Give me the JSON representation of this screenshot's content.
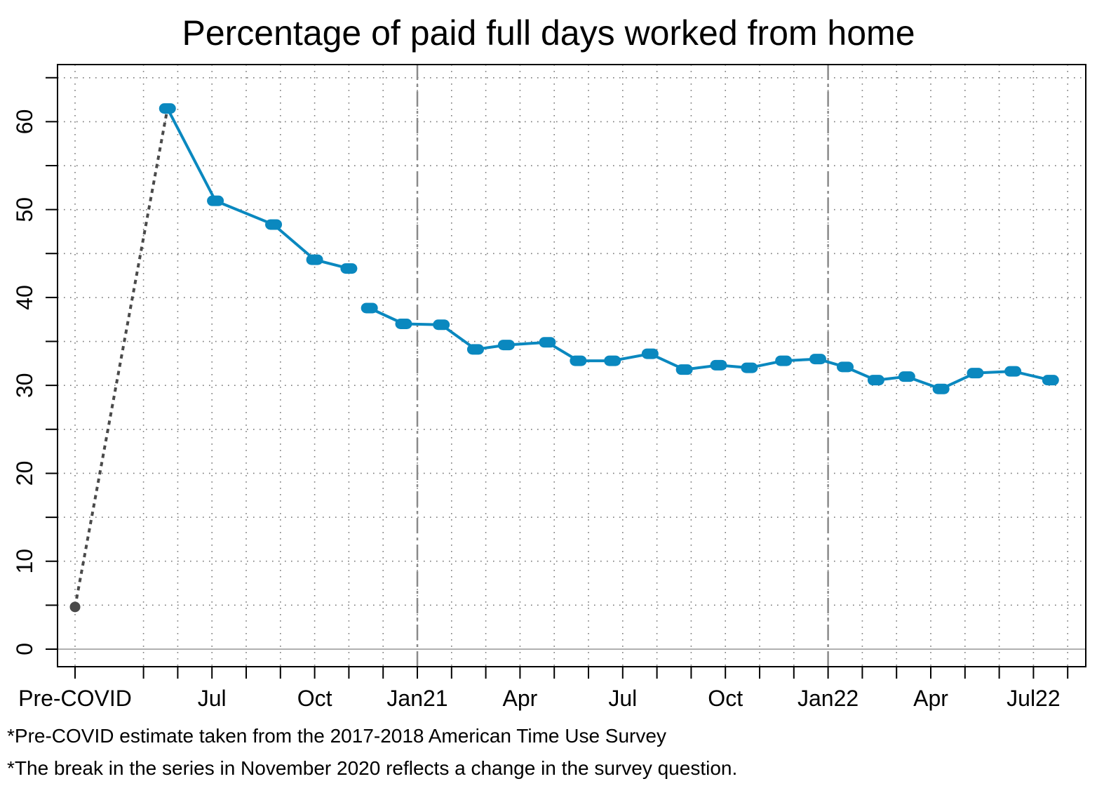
{
  "chart_data": {
    "type": "line",
    "title": "Percentage of paid full days worked from home",
    "ylim": [
      -2,
      66.5
    ],
    "y_ticks": [
      0,
      10,
      20,
      30,
      40,
      50,
      60
    ],
    "y_minor_ticks": [
      5,
      15,
      25,
      35,
      45,
      55,
      65
    ],
    "x_tick_labels": [
      {
        "label": "Pre-COVID",
        "x": 0
      },
      {
        "label": "Jul",
        "x": 4
      },
      {
        "label": "Oct",
        "x": 7
      },
      {
        "label": "Jan21",
        "x": 10
      },
      {
        "label": "Apr",
        "x": 13
      },
      {
        "label": "Jul",
        "x": 16
      },
      {
        "label": "Oct",
        "x": 19
      },
      {
        "label": "Jan22",
        "x": 22
      },
      {
        "label": "Apr",
        "x": 25
      },
      {
        "label": "Jul22",
        "x": 28
      }
    ],
    "x_minor_ticks": [
      2,
      3,
      5,
      6,
      8,
      9,
      11,
      12,
      14,
      15,
      17,
      18,
      20,
      21,
      23,
      24,
      26,
      27,
      29
    ],
    "xlim": [
      -0.5,
      29.4
    ],
    "grid": true,
    "series_break_lines": [
      10,
      22
    ],
    "reference_line_y": 0,
    "pre_covid_point": {
      "x": 0,
      "y": 4.8
    },
    "connector": [
      {
        "x": 0,
        "y": 4.8
      },
      {
        "x": 2.7,
        "y": 61.5
      }
    ],
    "series": [
      {
        "name": "",
        "color": "#0a88bf",
        "points": [
          {
            "x": 2.7,
            "y": 61.5
          },
          {
            "x": 4.1,
            "y": 51.0
          },
          {
            "x": 5.8,
            "y": 48.3
          },
          {
            "x": 7.0,
            "y": 44.3
          },
          {
            "x": 8.0,
            "y": 43.3
          }
        ]
      },
      {
        "name": "",
        "color": "#0a88bf",
        "points": [
          {
            "x": 8.6,
            "y": 38.8
          },
          {
            "x": 9.6,
            "y": 37.0
          },
          {
            "x": 10.7,
            "y": 36.9
          },
          {
            "x": 11.7,
            "y": 34.1
          },
          {
            "x": 12.6,
            "y": 34.6
          },
          {
            "x": 13.8,
            "y": 34.9
          },
          {
            "x": 14.7,
            "y": 32.8
          },
          {
            "x": 15.7,
            "y": 32.8
          },
          {
            "x": 16.8,
            "y": 33.6
          },
          {
            "x": 17.8,
            "y": 31.8
          },
          {
            "x": 18.8,
            "y": 32.3
          },
          {
            "x": 19.7,
            "y": 32.0
          },
          {
            "x": 20.7,
            "y": 32.8
          },
          {
            "x": 21.7,
            "y": 33.0
          },
          {
            "x": 22.5,
            "y": 32.1
          },
          {
            "x": 23.4,
            "y": 30.6
          },
          {
            "x": 24.3,
            "y": 31.0
          },
          {
            "x": 25.3,
            "y": 29.6
          },
          {
            "x": 26.3,
            "y": 31.4
          },
          {
            "x": 27.4,
            "y": 31.6
          },
          {
            "x": 28.5,
            "y": 30.6
          }
        ]
      }
    ],
    "colors": {
      "series": "#0a88bf",
      "connector": "#4a4a4a",
      "break_line": "#8a8a8a",
      "zero_line": "#b0b0b0",
      "grid": "#7a7a7a"
    }
  },
  "footnotes": [
    "*Pre-COVID estimate taken from the 2017-2018 American Time Use Survey",
    "*The break in the series in November 2020 reflects a change in the survey question."
  ]
}
